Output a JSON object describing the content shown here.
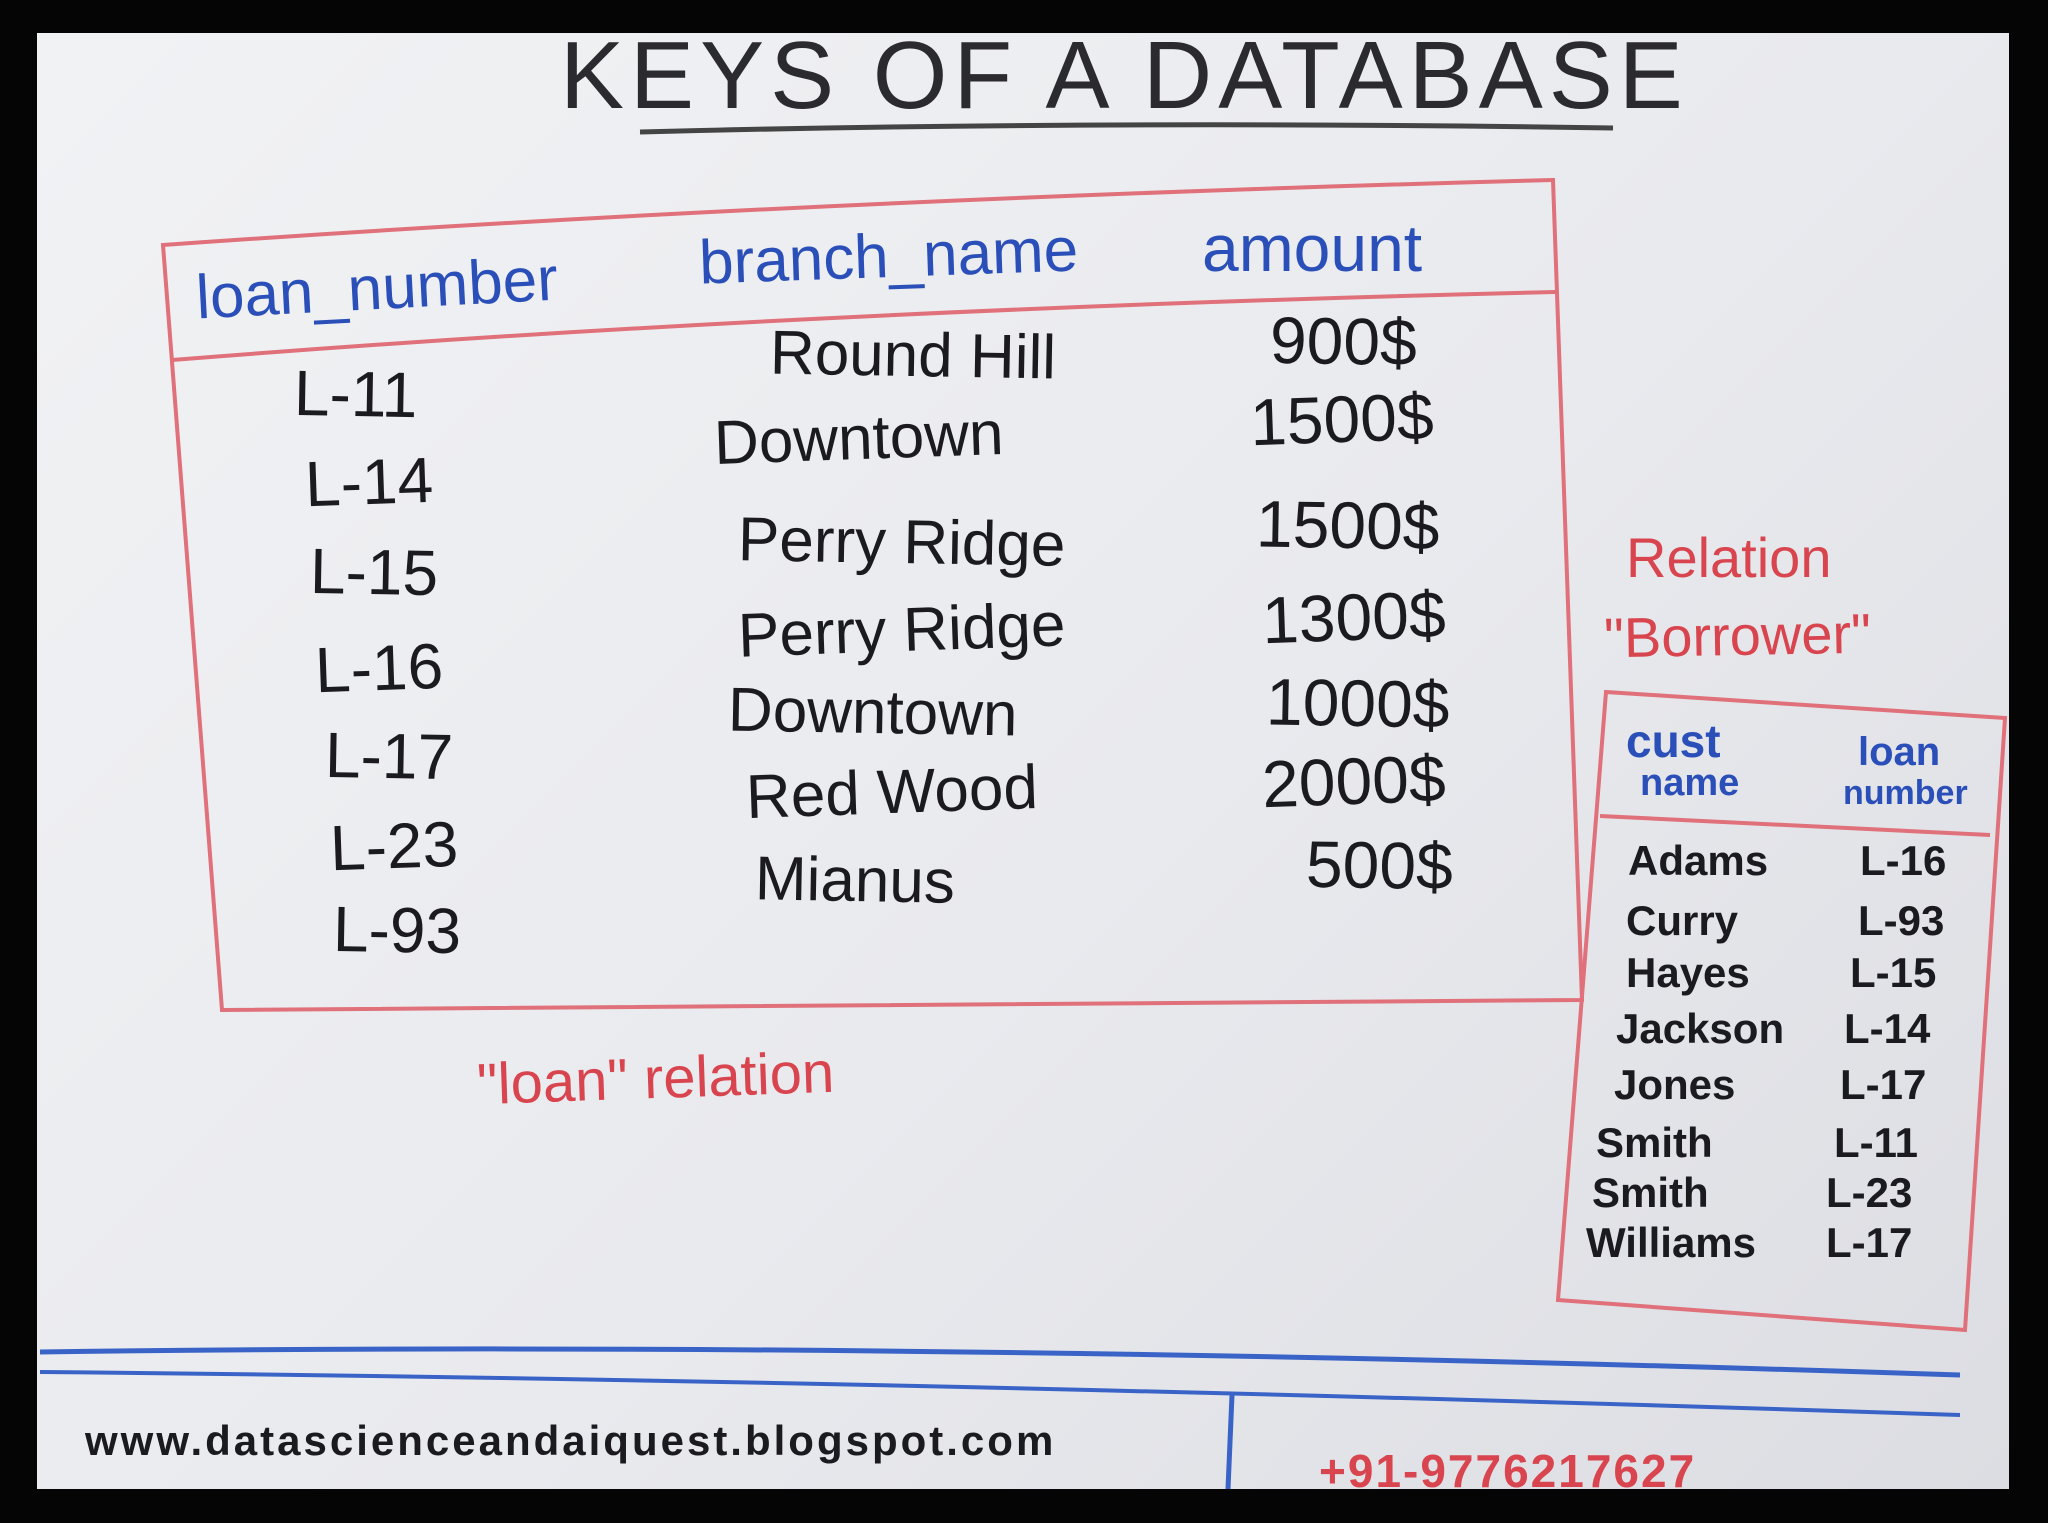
{
  "title": "KEYS OF A DATABASE",
  "loan_relation": {
    "caption": "\"loan\" relation",
    "headers": [
      "loan_number",
      "branch_name",
      "amount"
    ],
    "rows": [
      {
        "loan_number": "L-11",
        "branch_name": "Round Hill",
        "amount": "900$"
      },
      {
        "loan_number": "L-14",
        "branch_name": "Downtown",
        "amount": "1500$"
      },
      {
        "loan_number": "L-15",
        "branch_name": "Perry Ridge",
        "amount": "1500$"
      },
      {
        "loan_number": "L-16",
        "branch_name": "Perry Ridge",
        "amount": "1300$"
      },
      {
        "loan_number": "L-17",
        "branch_name": "Downtown",
        "amount": "1000$"
      },
      {
        "loan_number": "L-23",
        "branch_name": "Red Wood",
        "amount": "2000$"
      },
      {
        "loan_number": "L-93",
        "branch_name": "Mianus",
        "amount": "500$"
      }
    ]
  },
  "borrower_relation": {
    "caption_line1": "Relation",
    "caption_line2": "\"Borrower\"",
    "headers": [
      {
        "line1": "cust",
        "line2": "name"
      },
      {
        "line1": "loan",
        "line2": "number"
      }
    ],
    "rows": [
      {
        "cust_name": "Adams",
        "loan_number": "L-16"
      },
      {
        "cust_name": "Curry",
        "loan_number": "L-93"
      },
      {
        "cust_name": "Hayes",
        "loan_number": "L-15"
      },
      {
        "cust_name": "Jackson",
        "loan_number": "L-14"
      },
      {
        "cust_name": "Jones",
        "loan_number": "L-17"
      },
      {
        "cust_name": "Smith",
        "loan_number": "L-11"
      },
      {
        "cust_name": "Smith",
        "loan_number": "L-23"
      },
      {
        "cust_name": "Williams",
        "loan_number": "L-17"
      }
    ]
  },
  "footer": {
    "website": "www.datascienceandaiquest.blogspot.com",
    "phone": "+91-9776217627"
  },
  "colors": {
    "red_marker": "#d8454f",
    "blue_marker": "#2a4fb8",
    "black_marker": "#1a1a1f",
    "board": "#eceef1"
  }
}
